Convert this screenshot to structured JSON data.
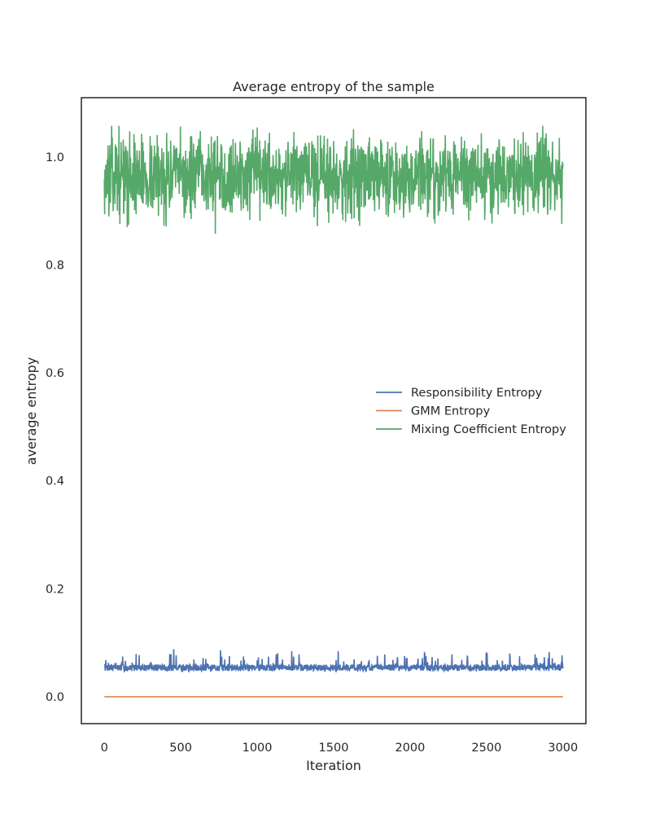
{
  "chart_data": {
    "type": "line",
    "title": "Average entropy of the sample",
    "xlabel": "Iteration",
    "ylabel": "average entropy",
    "xlim": [
      -150,
      3150
    ],
    "ylim": [
      -0.05,
      1.11
    ],
    "xticks": [
      0,
      500,
      1000,
      1500,
      2000,
      2500,
      3000
    ],
    "xtick_labels": [
      "0",
      "500",
      "1000",
      "1500",
      "2000",
      "2500",
      "3000"
    ],
    "yticks": [
      0.0,
      0.2,
      0.4,
      0.6,
      0.8,
      1.0
    ],
    "ytick_labels": [
      "0.0",
      "0.2",
      "0.4",
      "0.6",
      "0.8",
      "1.0"
    ],
    "grid": false,
    "legend_position": "center-right",
    "x_range": [
      0,
      3000
    ],
    "series": [
      {
        "name": "Responsibility Entropy",
        "color": "#4c72b0",
        "mean": 0.055,
        "min": 0.045,
        "max": 0.095,
        "noise_seed": 7
      },
      {
        "name": "GMM Entropy",
        "color": "#dd8452",
        "constant": 0.0
      },
      {
        "name": "Mixing Coefficient Entropy",
        "color": "#55a868",
        "mean": 0.965,
        "min": 0.856,
        "max": 1.058,
        "noise_seed": 13
      }
    ]
  }
}
